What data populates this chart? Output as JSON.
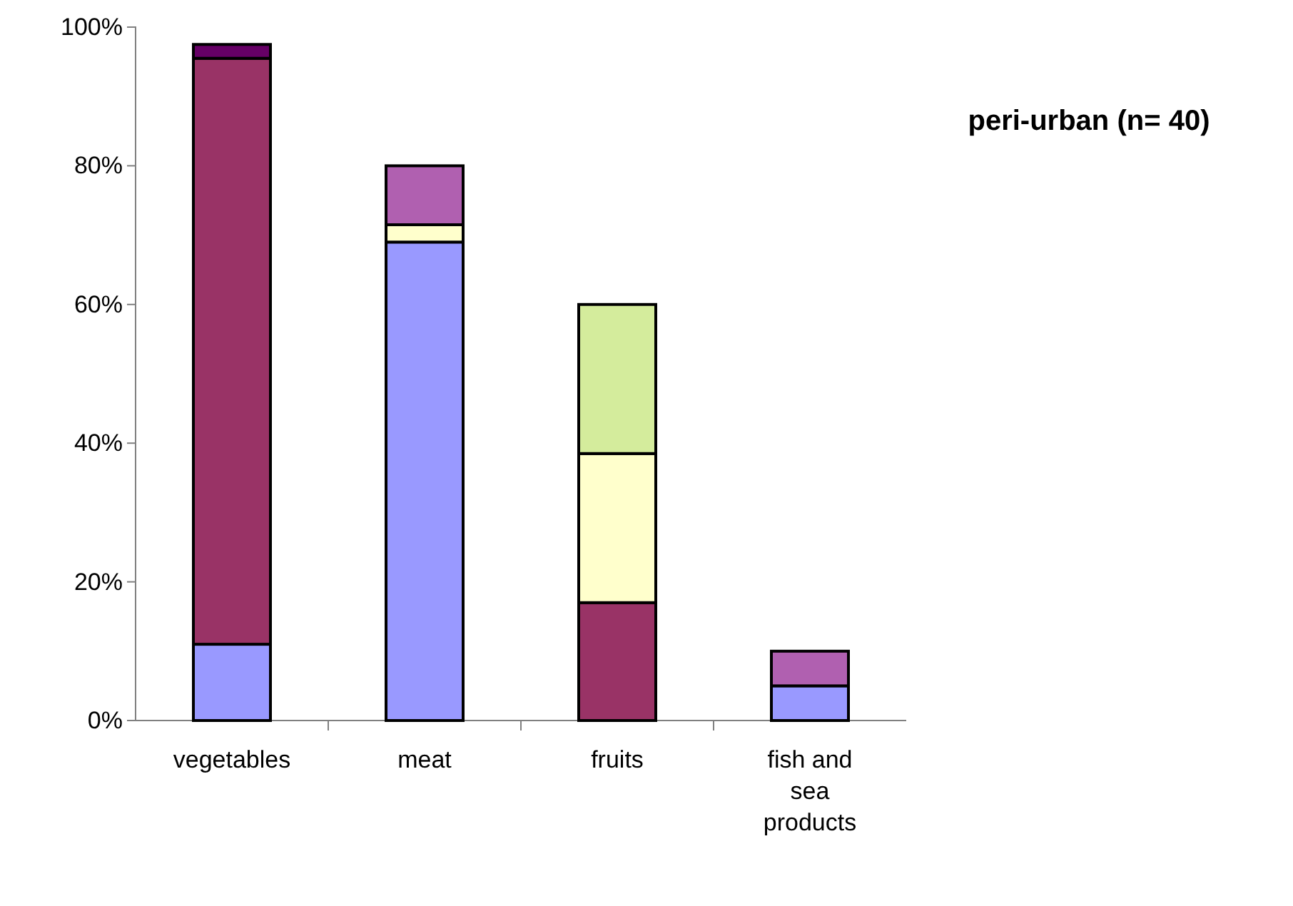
{
  "chart_data": {
    "type": "bar",
    "title": "peri-urban (n= 40)",
    "stacked": true,
    "categories": [
      "vegetables",
      "meat",
      "fruits",
      "fish and sea products"
    ],
    "series": [
      {
        "color": "#9999ff",
        "values": [
          11,
          69,
          null,
          5
        ]
      },
      {
        "color": "#993366",
        "values": [
          84.5,
          null,
          17,
          null
        ]
      },
      {
        "color": "#ffffcc",
        "values": [
          null,
          2.5,
          21.5,
          null
        ]
      },
      {
        "color": "#d4ec9c",
        "values": [
          null,
          null,
          21.5,
          null
        ]
      },
      {
        "color": "#b060b0",
        "values": [
          null,
          8.5,
          null,
          5
        ]
      },
      {
        "color": "#660066",
        "values": [
          2,
          null,
          null,
          null
        ]
      }
    ],
    "ylim": [
      0,
      100
    ],
    "yticks": [
      {
        "value": 0,
        "label": "0%"
      },
      {
        "value": 20,
        "label": "20%"
      },
      {
        "value": 40,
        "label": "40%"
      },
      {
        "value": 60,
        "label": "60%"
      },
      {
        "value": 80,
        "label": "80%"
      },
      {
        "value": 100,
        "label": "100%"
      }
    ],
    "grid": false
  }
}
